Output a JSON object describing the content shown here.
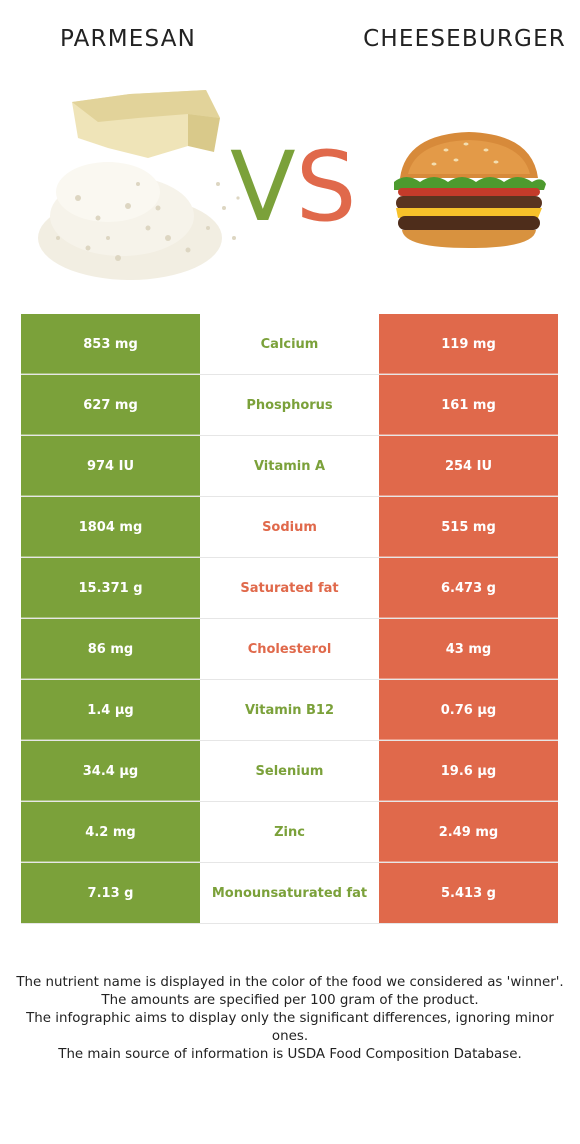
{
  "header": {
    "left_food": "PARMESAN",
    "right_food": "CHEESEBURGER",
    "vs": "VS"
  },
  "colors": {
    "left_winner": "#7ba13a",
    "right_winner": "#e0694b"
  },
  "nutrients": [
    {
      "name": "Calcium",
      "left": "853 mg",
      "right": "119 mg",
      "winner": "left"
    },
    {
      "name": "Phosphorus",
      "left": "627 mg",
      "right": "161 mg",
      "winner": "left"
    },
    {
      "name": "Vitamin A",
      "left": "974 IU",
      "right": "254 IU",
      "winner": "left"
    },
    {
      "name": "Sodium",
      "left": "1804 mg",
      "right": "515 mg",
      "winner": "right"
    },
    {
      "name": "Saturated fat",
      "left": "15.371 g",
      "right": "6.473 g",
      "winner": "right"
    },
    {
      "name": "Cholesterol",
      "left": "86 mg",
      "right": "43 mg",
      "winner": "right"
    },
    {
      "name": "Vitamin B12",
      "left": "1.4 µg",
      "right": "0.76 µg",
      "winner": "left"
    },
    {
      "name": "Selenium",
      "left": "34.4 µg",
      "right": "19.6 µg",
      "winner": "left"
    },
    {
      "name": "Zinc",
      "left": "4.2 mg",
      "right": "2.49 mg",
      "winner": "left"
    },
    {
      "name": "Monounsaturated fat",
      "left": "7.13 g",
      "right": "5.413 g",
      "winner": "left"
    }
  ],
  "footer": {
    "line1": "The nutrient name is displayed in the color of the food we considered as 'winner'.",
    "line2": "The amounts are specified per 100 gram of the product.",
    "line3": "The infographic aims to display only the significant differences, ignoring minor ones.",
    "line4": "The main source of information is USDA Food Composition Database."
  }
}
